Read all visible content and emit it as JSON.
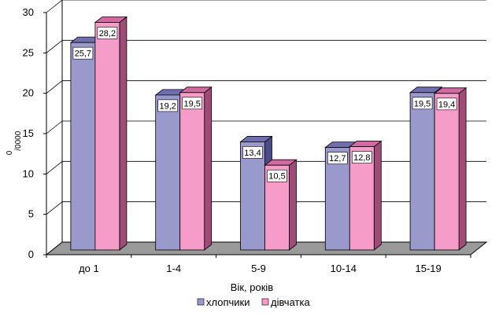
{
  "chart_data": {
    "type": "bar",
    "style": "3d-clustered-column",
    "categories": [
      "до 1",
      "1-4",
      "5-9",
      "10-14",
      "15-19"
    ],
    "series": [
      {
        "name": "хлопчики",
        "values": [
          25.7,
          19.2,
          13.4,
          12.7,
          19.5
        ],
        "color": "#9999CC"
      },
      {
        "name": "дівчатка",
        "values": [
          28.2,
          19.5,
          10.5,
          12.8,
          19.4
        ],
        "color": "#F59DC8"
      }
    ],
    "data_labels": [
      [
        "25,7",
        "19,2",
        "13,4",
        "12,7",
        "19,5"
      ],
      [
        "28,2",
        "19,5",
        "10,5",
        "12,8",
        "19,4"
      ]
    ],
    "y_ticks": [
      "0",
      "5",
      "10",
      "15",
      "20",
      "25",
      "30"
    ],
    "ylim": [
      0,
      30
    ],
    "ylabel": {
      "base": "0",
      "sub": "/0000"
    },
    "xlabel": "Вік, років",
    "grid": true,
    "legend_position": "bottom",
    "colors": {
      "floor": "#9A9A9A",
      "gridline": "#000000",
      "side_boys": "#4B4B8A",
      "top_boys": "#6F6FB0",
      "side_girls": "#A04C78",
      "top_girls": "#D06AA0"
    }
  }
}
